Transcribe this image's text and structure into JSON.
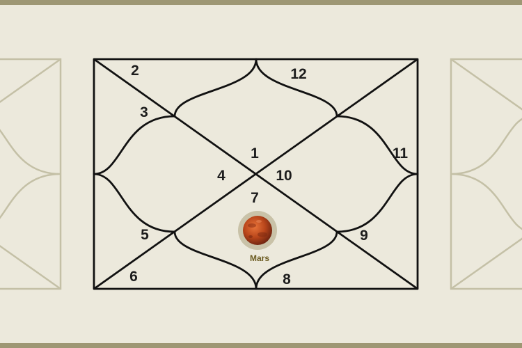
{
  "chart": {
    "houses": [
      {
        "number": "1"
      },
      {
        "number": "2"
      },
      {
        "number": "3"
      },
      {
        "number": "4"
      },
      {
        "number": "5"
      },
      {
        "number": "6"
      },
      {
        "number": "7"
      },
      {
        "number": "8"
      },
      {
        "number": "9"
      },
      {
        "number": "10"
      },
      {
        "number": "11"
      },
      {
        "number": "12"
      }
    ],
    "planet": {
      "name": "Mars",
      "house": "7",
      "icon": "mars-icon"
    }
  },
  "colors": {
    "background": "#ECE9DC",
    "band": "#9E9774",
    "line": "#111111",
    "ghost_line": "#C4C0A6",
    "planet_label": "#6A5A1F",
    "planet_halo": "#C9C2A8"
  }
}
